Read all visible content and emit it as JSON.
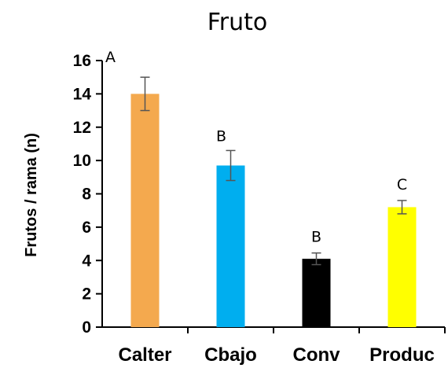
{
  "chart_data": {
    "type": "bar",
    "title": "Fruto",
    "ylabel": "Frutos / rama (n)",
    "xlabel": "",
    "categories": [
      "Calter",
      "Cbajo",
      "Conv",
      "Produc"
    ],
    "values": [
      14.0,
      9.7,
      4.1,
      7.2
    ],
    "errors": [
      1.0,
      0.9,
      0.35,
      0.4
    ],
    "significance": [
      "A",
      "B",
      "B",
      "C"
    ],
    "colors": [
      "#F4A94E",
      "#00AEEF",
      "#000000",
      "#FFFF00"
    ],
    "ylim": [
      0,
      16
    ],
    "yticks": [
      "0",
      "2",
      "4",
      "6",
      "8",
      "10",
      "12",
      "14",
      "16"
    ],
    "grid": false,
    "legend": "none"
  }
}
